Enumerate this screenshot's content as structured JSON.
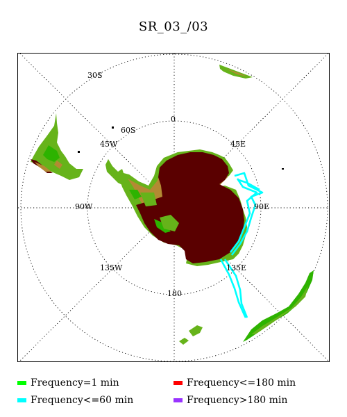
{
  "title": "SR_03_/03",
  "map": {
    "projection": "south-polar-stereographic",
    "longitude_labels": [
      "0",
      "45E",
      "90E",
      "135E",
      "180",
      "135W",
      "90W",
      "45W"
    ],
    "latitude_labels": [
      "30S",
      "60S"
    ],
    "colors": {
      "ocean": "#ffffff",
      "land_low": "#2db300",
      "land_mid": "#66b31a",
      "land_high": "#b38a33",
      "ice_sheet": "#5a0000",
      "track": "#00ffff"
    }
  },
  "legend": [
    {
      "label": "Frequency=1 min",
      "color": "#00ff00"
    },
    {
      "label": "Frequency<=180 min",
      "color": "#ff0000"
    },
    {
      "label": "Frequency<=60 min",
      "color": "#00ffff"
    },
    {
      "label": "Frequency>180 min",
      "color": "#9933ff"
    }
  ]
}
